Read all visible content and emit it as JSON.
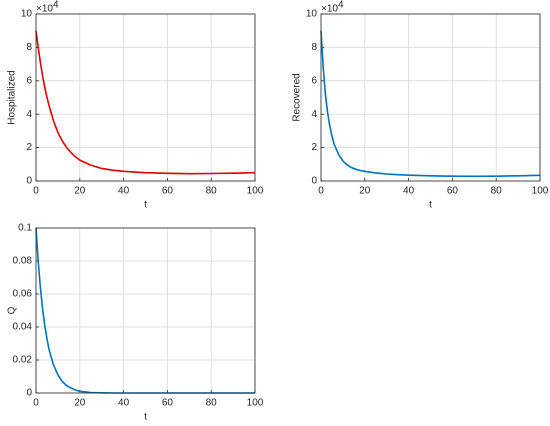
{
  "chart_data": [
    {
      "type": "line",
      "xlabel": "t",
      "ylabel": "Hospitalized",
      "y_multiplier": "×10",
      "y_multiplier_exponent": "4",
      "x": [
        0,
        1,
        2,
        3,
        4,
        5,
        6,
        8,
        10,
        12,
        14,
        16,
        18,
        20,
        25,
        30,
        35,
        40,
        50,
        60,
        70,
        80,
        90,
        100
      ],
      "values": [
        9.0,
        8.0,
        7.1,
        6.3,
        5.6,
        5.0,
        4.5,
        3.6,
        2.9,
        2.4,
        2.0,
        1.7,
        1.45,
        1.25,
        0.95,
        0.75,
        0.65,
        0.58,
        0.5,
        0.46,
        0.44,
        0.45,
        0.47,
        0.5
      ],
      "color": "#e00000",
      "xlim": [
        0,
        100
      ],
      "ylim": [
        0,
        10
      ],
      "xticks": [
        0,
        20,
        40,
        60,
        80,
        100
      ],
      "yticks": [
        0,
        2,
        4,
        6,
        8,
        10
      ],
      "grid": true
    },
    {
      "type": "line",
      "xlabel": "t",
      "ylabel": "Recovered",
      "y_multiplier": "×10",
      "y_multiplier_exponent": "4",
      "x": [
        0,
        1,
        2,
        3,
        4,
        5,
        6,
        8,
        10,
        12,
        14,
        16,
        18,
        20,
        25,
        30,
        35,
        40,
        50,
        60,
        70,
        80,
        90,
        100
      ],
      "values": [
        9.0,
        6.8,
        5.2,
        4.1,
        3.3,
        2.7,
        2.2,
        1.6,
        1.2,
        0.95,
        0.8,
        0.7,
        0.63,
        0.58,
        0.48,
        0.42,
        0.38,
        0.35,
        0.31,
        0.29,
        0.28,
        0.29,
        0.31,
        0.34
      ],
      "color": "#0072bd",
      "xlim": [
        0,
        100
      ],
      "ylim": [
        0,
        10
      ],
      "xticks": [
        0,
        20,
        40,
        60,
        80,
        100
      ],
      "yticks": [
        0,
        2,
        4,
        6,
        8,
        10
      ],
      "grid": true
    },
    {
      "type": "line",
      "xlabel": "t",
      "ylabel": "Q",
      "x": [
        0,
        1,
        2,
        3,
        4,
        5,
        6,
        8,
        10,
        12,
        14,
        16,
        18,
        20,
        25,
        30,
        35,
        40,
        50,
        60,
        70,
        80,
        90,
        100
      ],
      "values": [
        0.1,
        0.08,
        0.064,
        0.051,
        0.041,
        0.033,
        0.026,
        0.017,
        0.011,
        0.007,
        0.0045,
        0.003,
        0.0018,
        0.001,
        0.0003,
        0.0001,
        0,
        0,
        0,
        0,
        0,
        0,
        0,
        0
      ],
      "color": "#0072bd",
      "xlim": [
        0,
        100
      ],
      "ylim": [
        0,
        0.1
      ],
      "xticks": [
        0,
        20,
        40,
        60,
        80,
        100
      ],
      "yticks": [
        0,
        0.02,
        0.04,
        0.06,
        0.08,
        0.1
      ],
      "grid": true
    }
  ]
}
